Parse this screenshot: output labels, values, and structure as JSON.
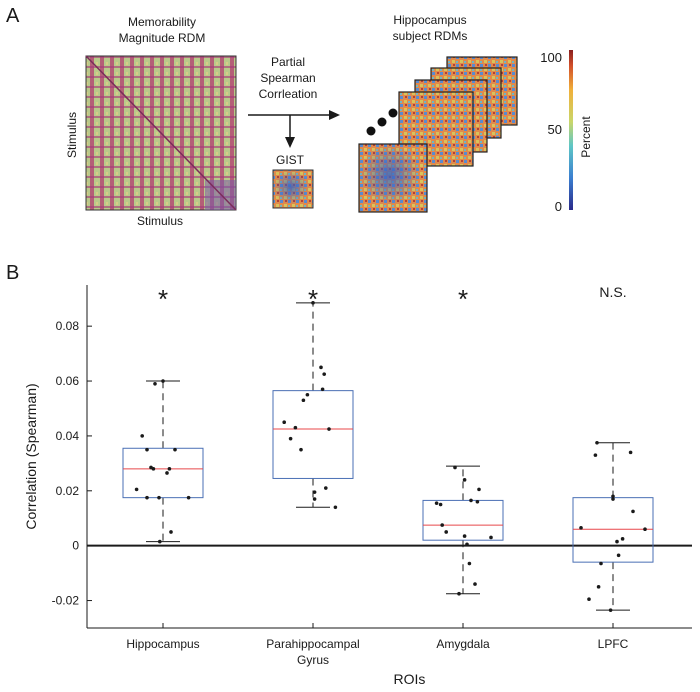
{
  "panel_a": {
    "label": "A",
    "memorability_title_line1": "Memorability",
    "memorability_title_line2": "Magnitude RDM",
    "stimulus_y": "Stimulus",
    "stimulus_x": "Stimulus",
    "method_line1": "Partial",
    "method_line2": "Spearman",
    "method_line3": "Corrleation",
    "gist_label": "GIST",
    "hippocampus_line1": "Hippocampus",
    "hippocampus_line2": "subject RDMs",
    "colorbar_label": "Percent",
    "colorbar_ticks": [
      "100",
      "50",
      "0"
    ]
  },
  "panel_b": {
    "label": "B"
  },
  "chart_data": {
    "type": "box",
    "title": "",
    "xlabel": "ROIs",
    "ylabel": "Correlation (Spearman)",
    "ylim": [
      -0.03,
      0.095
    ],
    "yticks": [
      -0.02,
      0,
      0.02,
      0.04,
      0.06,
      0.08
    ],
    "ytick_labels": [
      "-0.02",
      "0",
      "0.02",
      "0.04",
      "0.06",
      "0.08"
    ],
    "categories": [
      "Hippocampus",
      "Parahippocampal Gyrus",
      "Amygdala",
      "LPFC"
    ],
    "significance": [
      "*",
      "*",
      "*",
      "N.S."
    ],
    "boxes": [
      {
        "whisker_low": 0.0015,
        "q1": 0.0175,
        "median": 0.028,
        "q3": 0.0355,
        "whisker_high": 0.06
      },
      {
        "whisker_low": 0.014,
        "q1": 0.0245,
        "median": 0.0425,
        "q3": 0.0565,
        "whisker_high": 0.0885
      },
      {
        "whisker_low": -0.0175,
        "q1": 0.002,
        "median": 0.0075,
        "q3": 0.0165,
        "whisker_high": 0.029
      },
      {
        "whisker_low": -0.0235,
        "q1": -0.006,
        "median": 0.006,
        "q3": 0.0175,
        "whisker_high": 0.0375
      }
    ],
    "points": [
      [
        {
          "dx": -0.33,
          "y": 0.0205
        },
        {
          "dx": -0.26,
          "y": 0.04
        },
        {
          "dx": -0.2,
          "y": 0.035
        },
        {
          "dx": -0.1,
          "y": 0.059
        },
        {
          "dx": 0.0,
          "y": 0.06
        },
        {
          "dx": -0.15,
          "y": 0.0285
        },
        {
          "dx": -0.12,
          "y": 0.028
        },
        {
          "dx": -0.2,
          "y": 0.0175
        },
        {
          "dx": 0.05,
          "y": 0.0265
        },
        {
          "dx": 0.08,
          "y": 0.028
        },
        {
          "dx": 0.15,
          "y": 0.035
        },
        {
          "dx": -0.05,
          "y": 0.0175
        },
        {
          "dx": 0.1,
          "y": 0.005
        },
        {
          "dx": 0.32,
          "y": 0.0175
        },
        {
          "dx": -0.04,
          "y": 0.0015
        }
      ],
      [
        {
          "dx": -0.36,
          "y": 0.045
        },
        {
          "dx": -0.28,
          "y": 0.039
        },
        {
          "dx": -0.22,
          "y": 0.043
        },
        {
          "dx": -0.12,
          "y": 0.053
        },
        {
          "dx": -0.07,
          "y": 0.055
        },
        {
          "dx": -0.15,
          "y": 0.035
        },
        {
          "dx": 0.0,
          "y": 0.0885
        },
        {
          "dx": 0.1,
          "y": 0.065
        },
        {
          "dx": 0.14,
          "y": 0.0625
        },
        {
          "dx": 0.12,
          "y": 0.057
        },
        {
          "dx": 0.2,
          "y": 0.0425
        },
        {
          "dx": 0.16,
          "y": 0.021
        },
        {
          "dx": 0.02,
          "y": 0.0195
        },
        {
          "dx": 0.02,
          "y": 0.017
        },
        {
          "dx": 0.28,
          "y": 0.014
        }
      ],
      [
        {
          "dx": -0.33,
          "y": 0.0155
        },
        {
          "dx": -0.28,
          "y": 0.015
        },
        {
          "dx": -0.26,
          "y": 0.0075
        },
        {
          "dx": -0.21,
          "y": 0.005
        },
        {
          "dx": -0.1,
          "y": 0.0285
        },
        {
          "dx": 0.02,
          "y": 0.024
        },
        {
          "dx": 0.02,
          "y": 0.0035
        },
        {
          "dx": 0.05,
          "y": 0.0005
        },
        {
          "dx": 0.08,
          "y": -0.0065
        },
        {
          "dx": 0.1,
          "y": 0.0165
        },
        {
          "dx": 0.18,
          "y": 0.016
        },
        {
          "dx": 0.2,
          "y": 0.0205
        },
        {
          "dx": 0.35,
          "y": 0.003
        },
        {
          "dx": 0.15,
          "y": -0.014
        },
        {
          "dx": -0.05,
          "y": -0.0175
        }
      ],
      [
        {
          "dx": -0.4,
          "y": 0.0065
        },
        {
          "dx": -0.3,
          "y": -0.0195
        },
        {
          "dx": -0.15,
          "y": -0.0065
        },
        {
          "dx": -0.18,
          "y": -0.015
        },
        {
          "dx": -0.22,
          "y": 0.033
        },
        {
          "dx": -0.2,
          "y": 0.0375
        },
        {
          "dx": 0.0,
          "y": 0.018
        },
        {
          "dx": 0.0,
          "y": 0.017
        },
        {
          "dx": 0.05,
          "y": 0.0015
        },
        {
          "dx": 0.07,
          "y": -0.0035
        },
        {
          "dx": 0.12,
          "y": 0.0025
        },
        {
          "dx": 0.25,
          "y": 0.0125
        },
        {
          "dx": 0.22,
          "y": 0.034
        },
        {
          "dx": 0.4,
          "y": 0.006
        },
        {
          "dx": -0.03,
          "y": -0.0235
        }
      ]
    ],
    "colors": {
      "box": "#4a6fb4",
      "median": "#e8474a",
      "whisker": "#1a1a1a",
      "point": "#1a1a1a"
    }
  }
}
